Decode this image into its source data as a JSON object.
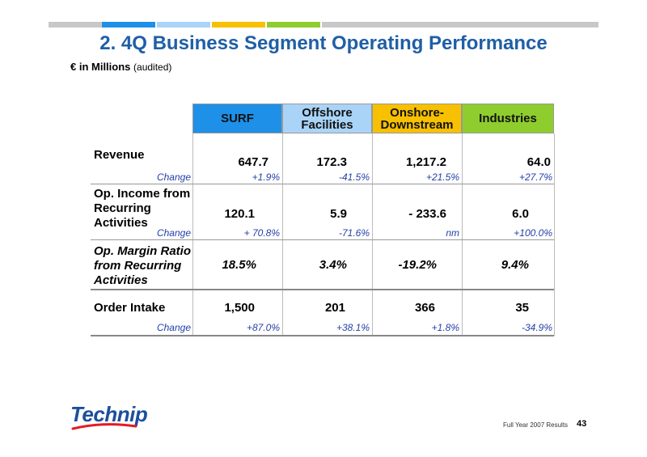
{
  "header": {
    "title": "2.  4Q Business Segment Operating Performance",
    "subtitle_main": "€ in Millions",
    "subtitle_note": "(audited)",
    "bar_colors": [
      "#c8c8c8",
      "#1e90e8",
      "#a9d4f7",
      "#f7c000",
      "#8fcd2e",
      "#c8c8c8"
    ]
  },
  "columns": [
    {
      "label": "SURF",
      "color": "#1e90e8"
    },
    {
      "label": "Offshore Facilities",
      "color": "#a9d4f7"
    },
    {
      "label": "Onshore-Downstream",
      "color": "#f7c000"
    },
    {
      "label": "Industries",
      "color": "#8fcd2e"
    }
  ],
  "rows": {
    "revenue": {
      "label": "Revenue",
      "values": [
        "647.7",
        "172.3",
        "1,217.2",
        "64.0"
      ],
      "change_label": "Change",
      "changes": [
        "+1.9%",
        "-41.5%",
        "+21.5%",
        "+27.7%"
      ]
    },
    "op_income": {
      "label_lines": [
        "Op. Income from",
        "Recurring",
        "Activities"
      ],
      "values": [
        "120.1",
        "5.9",
        "- 233.6",
        "6.0"
      ],
      "change_label": "Change",
      "changes": [
        "+ 70.8%",
        "-71.6%",
        "nm",
        "+100.0%"
      ]
    },
    "op_margin": {
      "label_lines": [
        "Op. Margin Ratio",
        "from Recurring",
        "Activities"
      ],
      "values": [
        "18.5%",
        "3.4%",
        "-19.2%",
        "9.4%"
      ]
    },
    "order_intake": {
      "label": "Order Intake",
      "values": [
        "1,500",
        "201",
        "366",
        "35"
      ],
      "change_label": "Change",
      "changes": [
        "+87.0%",
        "+38.1%",
        "+1.8%",
        "-34.9%"
      ]
    }
  },
  "footer": {
    "logo": "Technip",
    "text": "Full Year 2007 Results",
    "page": "43"
  }
}
